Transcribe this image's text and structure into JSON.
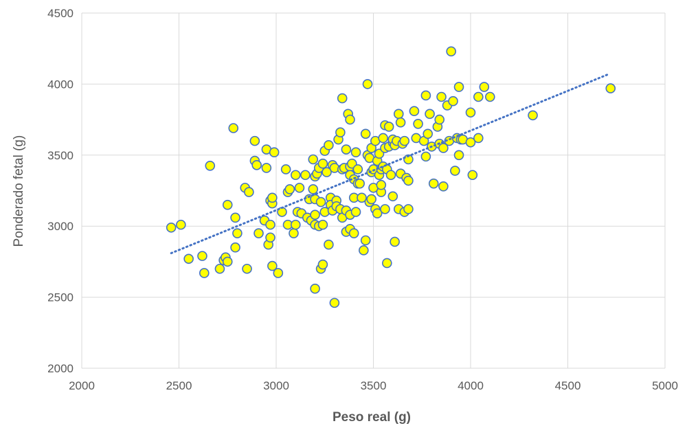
{
  "chart_data": {
    "type": "scatter",
    "xlabel": "Peso real (g)",
    "ylabel": "Ponderado fetal (g)",
    "xlim": [
      2000,
      5000
    ],
    "ylim": [
      2000,
      4500
    ],
    "x_ticks": [
      "2000",
      "2500",
      "3000",
      "3500",
      "4000",
      "4500",
      "5000"
    ],
    "y_ticks": [
      "2000",
      "2500",
      "3000",
      "3500",
      "4000",
      "4500"
    ],
    "grid": true,
    "legend": "none",
    "marker": {
      "fill": "#ffff00",
      "edge": "#4472c4"
    },
    "trendline": {
      "type": "linear",
      "color": "#4472c4",
      "style": "dotted",
      "x": [
        2460,
        4710
      ],
      "y": [
        2810,
        4070
      ]
    },
    "series": [
      {
        "points": [
          [
            2460,
            2990
          ],
          [
            2510,
            3010
          ],
          [
            2550,
            2770
          ],
          [
            2620,
            2790
          ],
          [
            2630,
            2670
          ],
          [
            2660,
            3425
          ],
          [
            2710,
            2700
          ],
          [
            2730,
            2760
          ],
          [
            2740,
            2780
          ],
          [
            2750,
            3150
          ],
          [
            2750,
            2750
          ],
          [
            2780,
            3690
          ],
          [
            2790,
            2850
          ],
          [
            2790,
            3060
          ],
          [
            2800,
            2950
          ],
          [
            2840,
            3270
          ],
          [
            2850,
            2700
          ],
          [
            2860,
            3240
          ],
          [
            2890,
            3600
          ],
          [
            2890,
            3460
          ],
          [
            2900,
            3430
          ],
          [
            2910,
            2950
          ],
          [
            2940,
            3040
          ],
          [
            2950,
            3540
          ],
          [
            2950,
            3410
          ],
          [
            2960,
            2870
          ],
          [
            2970,
            2920
          ],
          [
            2970,
            3010
          ],
          [
            2970,
            3180
          ],
          [
            2980,
            2720
          ],
          [
            2980,
            3160
          ],
          [
            2980,
            3200
          ],
          [
            2990,
            3520
          ],
          [
            3010,
            2670
          ],
          [
            3030,
            3100
          ],
          [
            3050,
            3400
          ],
          [
            3060,
            3240
          ],
          [
            3060,
            3010
          ],
          [
            3070,
            3260
          ],
          [
            3090,
            2950
          ],
          [
            3100,
            3010
          ],
          [
            3100,
            3360
          ],
          [
            3110,
            3100
          ],
          [
            3120,
            3270
          ],
          [
            3130,
            3090
          ],
          [
            3150,
            3360
          ],
          [
            3160,
            3060
          ],
          [
            3170,
            3190
          ],
          [
            3180,
            3040
          ],
          [
            3190,
            3470
          ],
          [
            3190,
            3260
          ],
          [
            3200,
            3350
          ],
          [
            3200,
            3190
          ],
          [
            3200,
            3080
          ],
          [
            3200,
            3010
          ],
          [
            3200,
            2560
          ],
          [
            3210,
            3370
          ],
          [
            3220,
            3000
          ],
          [
            3220,
            3410
          ],
          [
            3230,
            3170
          ],
          [
            3230,
            2700
          ],
          [
            3240,
            2730
          ],
          [
            3240,
            3440
          ],
          [
            3240,
            3010
          ],
          [
            3250,
            3530
          ],
          [
            3250,
            3100
          ],
          [
            3260,
            3380
          ],
          [
            3270,
            3570
          ],
          [
            3270,
            2870
          ],
          [
            3280,
            3200
          ],
          [
            3280,
            3150
          ],
          [
            3290,
            3430
          ],
          [
            3290,
            3110
          ],
          [
            3300,
            3410
          ],
          [
            3300,
            2460
          ],
          [
            3310,
            3180
          ],
          [
            3310,
            3140
          ],
          [
            3320,
            3610
          ],
          [
            3330,
            3660
          ],
          [
            3330,
            3120
          ],
          [
            3340,
            3900
          ],
          [
            3340,
            3400
          ],
          [
            3340,
            3060
          ],
          [
            3350,
            3410
          ],
          [
            3360,
            3540
          ],
          [
            3360,
            3110
          ],
          [
            3360,
            2960
          ],
          [
            3370,
            3790
          ],
          [
            3380,
            3750
          ],
          [
            3380,
            3420
          ],
          [
            3380,
            3360
          ],
          [
            3380,
            2980
          ],
          [
            3380,
            3080
          ],
          [
            3390,
            3440
          ],
          [
            3400,
            3200
          ],
          [
            3400,
            3330
          ],
          [
            3400,
            2950
          ],
          [
            3410,
            3520
          ],
          [
            3410,
            3100
          ],
          [
            3420,
            3400
          ],
          [
            3420,
            3300
          ],
          [
            3430,
            3300
          ],
          [
            3440,
            3200
          ],
          [
            3450,
            2830
          ],
          [
            3460,
            3650
          ],
          [
            3460,
            2900
          ],
          [
            3470,
            4000
          ],
          [
            3470,
            3500
          ],
          [
            3480,
            3480
          ],
          [
            3480,
            3170
          ],
          [
            3490,
            3550
          ],
          [
            3490,
            3380
          ],
          [
            3490,
            3190
          ],
          [
            3500,
            3270
          ],
          [
            3500,
            3400
          ],
          [
            3510,
            3120
          ],
          [
            3510,
            3600
          ],
          [
            3520,
            3460
          ],
          [
            3520,
            3090
          ],
          [
            3530,
            3510
          ],
          [
            3530,
            3360
          ],
          [
            3540,
            3240
          ],
          [
            3540,
            3290
          ],
          [
            3540,
            3400
          ],
          [
            3550,
            3620
          ],
          [
            3550,
            3420
          ],
          [
            3560,
            3710
          ],
          [
            3560,
            3550
          ],
          [
            3560,
            3120
          ],
          [
            3570,
            2740
          ],
          [
            3570,
            3400
          ],
          [
            3580,
            3700
          ],
          [
            3580,
            3560
          ],
          [
            3590,
            3360
          ],
          [
            3600,
            3210
          ],
          [
            3600,
            3590
          ],
          [
            3600,
            3610
          ],
          [
            3610,
            2890
          ],
          [
            3610,
            3570
          ],
          [
            3620,
            3600
          ],
          [
            3630,
            3790
          ],
          [
            3630,
            3120
          ],
          [
            3640,
            3730
          ],
          [
            3640,
            3370
          ],
          [
            3650,
            3580
          ],
          [
            3660,
            3600
          ],
          [
            3660,
            3100
          ],
          [
            3670,
            3340
          ],
          [
            3680,
            3470
          ],
          [
            3680,
            3120
          ],
          [
            3680,
            3320
          ],
          [
            3710,
            3810
          ],
          [
            3720,
            3620
          ],
          [
            3730,
            3720
          ],
          [
            3760,
            3600
          ],
          [
            3770,
            3920
          ],
          [
            3770,
            3490
          ],
          [
            3780,
            3650
          ],
          [
            3790,
            3790
          ],
          [
            3800,
            3560
          ],
          [
            3810,
            3300
          ],
          [
            3830,
            3700
          ],
          [
            3840,
            3750
          ],
          [
            3840,
            3580
          ],
          [
            3850,
            3910
          ],
          [
            3860,
            3280
          ],
          [
            3860,
            3550
          ],
          [
            3880,
            3850
          ],
          [
            3890,
            3600
          ],
          [
            3900,
            4230
          ],
          [
            3910,
            3880
          ],
          [
            3920,
            3390
          ],
          [
            3930,
            3620
          ],
          [
            3940,
            3980
          ],
          [
            3940,
            3500
          ],
          [
            3950,
            3610
          ],
          [
            3960,
            3610
          ],
          [
            4000,
            3800
          ],
          [
            4000,
            3590
          ],
          [
            4010,
            3360
          ],
          [
            4040,
            3910
          ],
          [
            4040,
            3620
          ],
          [
            4070,
            3980
          ],
          [
            4100,
            3910
          ],
          [
            4320,
            3780
          ],
          [
            4720,
            3970
          ]
        ]
      }
    ]
  }
}
